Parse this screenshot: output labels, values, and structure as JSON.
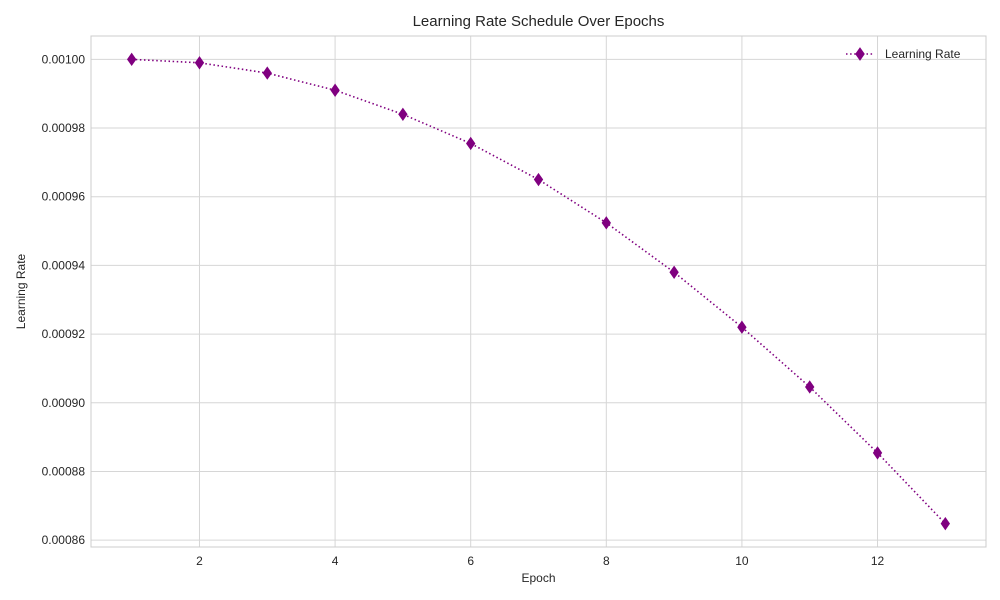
{
  "chart_data": {
    "type": "line",
    "title": "Learning Rate Schedule Over Epochs",
    "xlabel": "Epoch",
    "ylabel": "Learning Rate",
    "x": [
      1,
      2,
      3,
      4,
      5,
      6,
      7,
      8,
      9,
      10,
      11,
      12,
      13
    ],
    "series": [
      {
        "name": "Learning Rate",
        "color": "#800080",
        "line_style": "dotted",
        "marker": "thin-diamond",
        "values": [
          0.001,
          0.000999,
          0.000996,
          0.000991,
          0.000984,
          0.0009755,
          0.000965,
          0.0009524,
          0.000938,
          0.000922,
          0.0009046,
          0.0008854,
          0.0008648
        ]
      }
    ],
    "xlim": [
      0.4,
      13.6
    ],
    "ylim": [
      0.000858,
      0.0010068
    ],
    "xticks": [
      2,
      4,
      6,
      8,
      10,
      12
    ],
    "yticks": [
      0.00086,
      0.00088,
      0.0009,
      0.00092,
      0.00094,
      0.00096,
      0.00098,
      0.001
    ],
    "ytick_labels": [
      "0.00086",
      "0.00088",
      "0.00090",
      "0.00092",
      "0.00094",
      "0.00096",
      "0.00098",
      "0.00100"
    ],
    "grid": true,
    "legend_position": "top-right"
  }
}
